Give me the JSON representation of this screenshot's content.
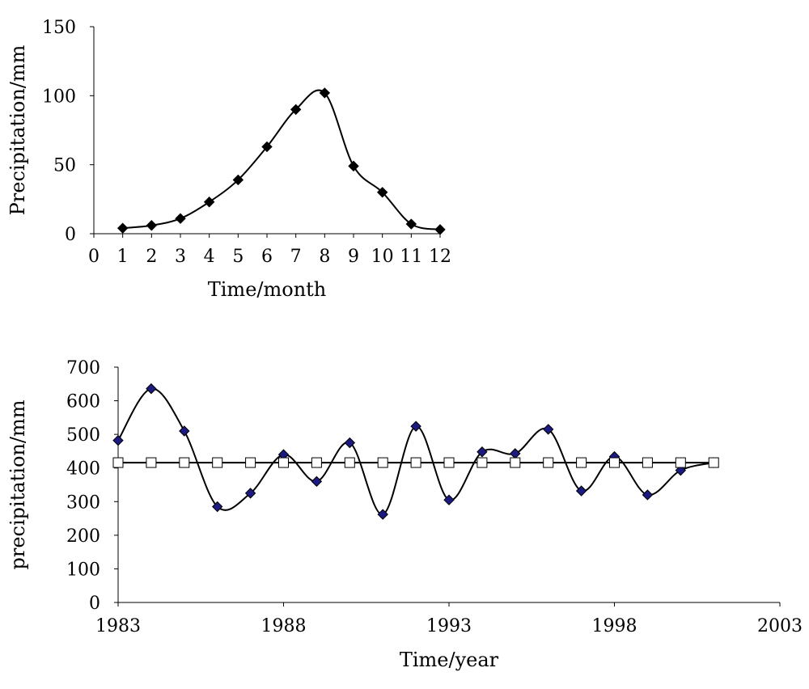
{
  "chart_data": [
    {
      "type": "line",
      "xlabel": "Time/month",
      "ylabel": "Precipitation/mm",
      "xlim": [
        0,
        12
      ],
      "ylim": [
        0,
        150
      ],
      "xticks": [
        "0",
        "1",
        "2",
        "3",
        "4",
        "5",
        "6",
        "7",
        "8",
        "9",
        "10",
        "11",
        "12"
      ],
      "yticks": [
        "0",
        "50",
        "100",
        "150"
      ],
      "smooth": true,
      "grid": false,
      "series": [
        {
          "color": "#000000",
          "marker": "diamond",
          "marker_fill": "#000000",
          "x": [
            1,
            2,
            3,
            4,
            5,
            6,
            7,
            8,
            9,
            10,
            11,
            12
          ],
          "values": [
            4,
            6,
            11,
            23,
            39,
            63,
            90,
            102,
            49,
            30,
            7,
            3
          ]
        }
      ]
    },
    {
      "type": "line",
      "xlabel": "Time/year",
      "ylabel": "precipitation/mm",
      "xlim": [
        1983,
        2003
      ],
      "ylim": [
        0,
        700
      ],
      "xticks": [
        "1983",
        "1988",
        "1993",
        "1998",
        "2003"
      ],
      "yticks": [
        "0",
        "100",
        "200",
        "300",
        "400",
        "500",
        "600",
        "700"
      ],
      "smooth": true,
      "grid": false,
      "series": [
        {
          "color": "#000000",
          "marker": "diamond",
          "marker_fill": "#1a1a80",
          "x": [
            1983,
            1984,
            1985,
            1986,
            1987,
            1988,
            1989,
            1990,
            1991,
            1992,
            1993,
            1994,
            1995,
            1996,
            1997,
            1998,
            1999,
            2000,
            2001
          ],
          "values": [
            482,
            636,
            510,
            285,
            325,
            440,
            360,
            475,
            262,
            524,
            305,
            448,
            443,
            515,
            332,
            434,
            320,
            393,
            416
          ]
        },
        {
          "color": "#000000",
          "marker": "square",
          "marker_fill": "#ffffff",
          "x": [
            1983,
            1984,
            1985,
            1986,
            1987,
            1988,
            1989,
            1990,
            1991,
            1992,
            1993,
            1994,
            1995,
            1996,
            1997,
            1998,
            1999,
            2000,
            2001
          ],
          "values": [
            416,
            416,
            416,
            416,
            416,
            416,
            416,
            416,
            416,
            416,
            416,
            416,
            416,
            416,
            416,
            416,
            416,
            416,
            416
          ]
        }
      ]
    }
  ]
}
